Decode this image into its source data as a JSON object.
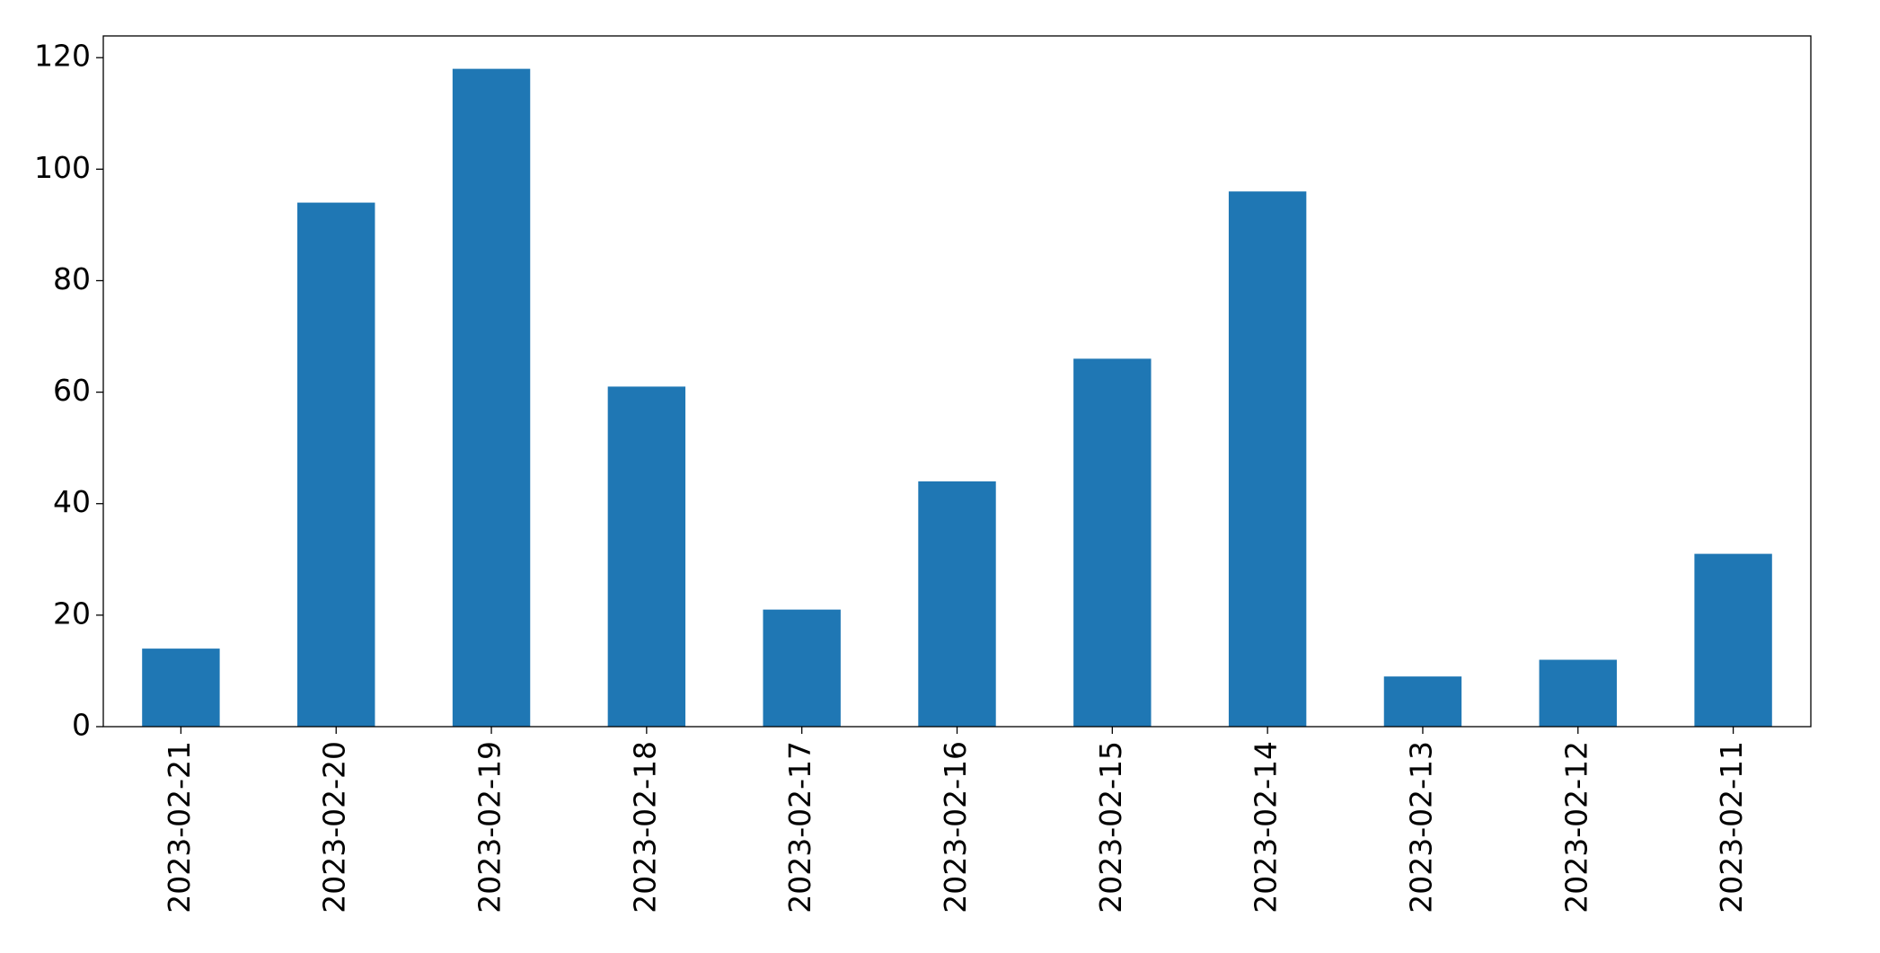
{
  "chart_data": {
    "type": "bar",
    "categories": [
      "2023-02-21",
      "2023-02-20",
      "2023-02-19",
      "2023-02-18",
      "2023-02-17",
      "2023-02-16",
      "2023-02-15",
      "2023-02-14",
      "2023-02-13",
      "2023-02-12",
      "2023-02-11"
    ],
    "values": [
      14,
      94,
      118,
      61,
      21,
      44,
      66,
      96,
      9,
      12,
      31
    ],
    "color": "#1f77b4",
    "ylim": [
      0,
      123.9
    ],
    "yticks": [
      0,
      20,
      40,
      60,
      80,
      100,
      120
    ],
    "grid": false
  }
}
